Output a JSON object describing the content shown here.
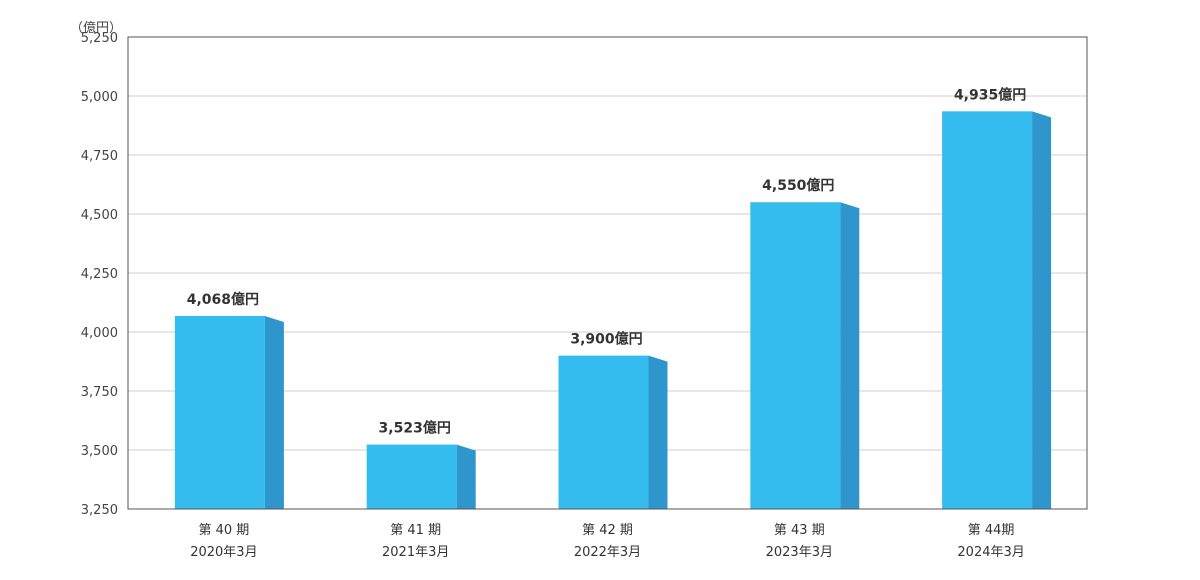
{
  "chart_data": {
    "type": "bar",
    "unit_label": "（億円）",
    "categories": [
      {
        "period": "第 40 期",
        "date": "2020年3月"
      },
      {
        "period": "第 41 期",
        "date": "2021年3月"
      },
      {
        "period": "第 42 期",
        "date": "2022年3月"
      },
      {
        "period": "第 43 期",
        "date": "2023年3月"
      },
      {
        "period": "第 44期",
        "date": "2024年3月"
      }
    ],
    "values": [
      4068,
      3523,
      3900,
      4550,
      4935
    ],
    "data_labels": [
      "4,068億円",
      "3,523億円",
      "3,900億円",
      "4,550億円",
      "4,935億円"
    ],
    "y_ticks": [
      3250,
      3500,
      3750,
      4000,
      4250,
      4500,
      4750,
      5000,
      5250
    ],
    "y_tick_labels": [
      "3,250",
      "3,500",
      "3,750",
      "4,000",
      "4,250",
      "4,500",
      "4,750",
      "5,000",
      "5,250"
    ],
    "ylim": [
      3250,
      5250
    ],
    "grid": true,
    "colors": {
      "bar_front": "#35bcee",
      "bar_side": "#2e96cd",
      "grid": "#cfcfcf",
      "axis": "#555555"
    }
  }
}
